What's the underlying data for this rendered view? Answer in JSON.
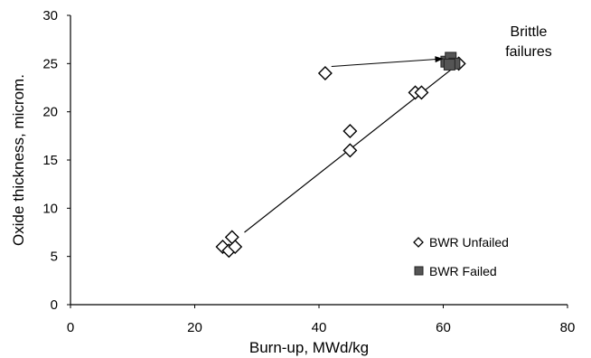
{
  "chart_data": {
    "type": "scatter",
    "title": "",
    "xlabel": "Burn-up, MWd/kg",
    "ylabel": "Oxide thickness, microm.",
    "xlim": [
      0,
      80
    ],
    "ylim": [
      0,
      30
    ],
    "x_ticks": [
      "0",
      "20",
      "40",
      "60",
      "80"
    ],
    "y_ticks": [
      "0",
      "5",
      "10",
      "15",
      "20",
      "25",
      "30"
    ],
    "grid": false,
    "legend_position": "bottom-right",
    "series": [
      {
        "name": "BWR Unfailed",
        "marker": "diamond-open",
        "color": "#000000",
        "points": [
          {
            "x": 24.5,
            "y": 6.0
          },
          {
            "x": 25.5,
            "y": 5.6
          },
          {
            "x": 26.0,
            "y": 7.0
          },
          {
            "x": 26.5,
            "y": 6.0
          },
          {
            "x": 41.0,
            "y": 24.0
          },
          {
            "x": 45.0,
            "y": 18.0
          },
          {
            "x": 45.0,
            "y": 16.0
          },
          {
            "x": 55.5,
            "y": 22.0
          },
          {
            "x": 56.5,
            "y": 22.0
          },
          {
            "x": 62.5,
            "y": 25.0
          }
        ]
      },
      {
        "name": "BWR Failed",
        "marker": "square-filled",
        "color": "#555555",
        "points": [
          {
            "x": 60.5,
            "y": 25.2
          },
          {
            "x": 61.2,
            "y": 25.6
          },
          {
            "x": 61.8,
            "y": 25.0
          },
          {
            "x": 61.0,
            "y": 24.9
          }
        ]
      }
    ],
    "trendline": {
      "x": [
        28,
        62.5
      ],
      "y": [
        7.5,
        25.0
      ]
    },
    "annotation": {
      "lines": [
        "Brittle",
        "failures"
      ],
      "arrow_from": {
        "x": 42.0,
        "y": 24.7
      },
      "arrow_to": {
        "x": 60.0,
        "y": 25.5
      }
    }
  }
}
